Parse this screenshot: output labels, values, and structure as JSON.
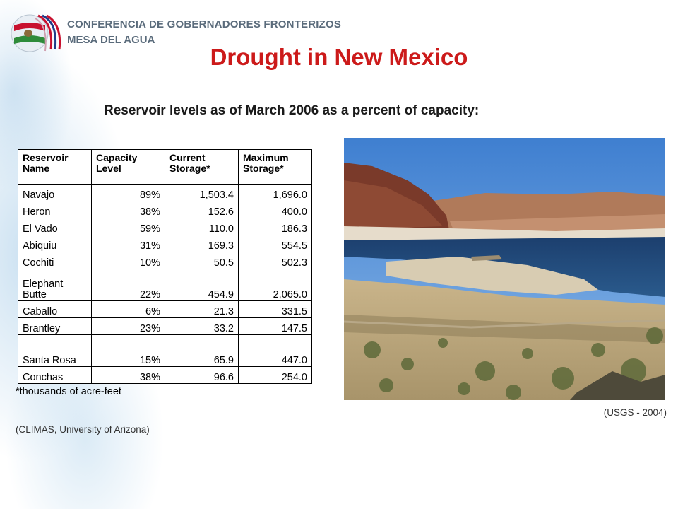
{
  "header": {
    "org_name": "CONFERENCIA DE GOBERNADORES FRONTERIZOS",
    "org_sub": "MESA DEL AGUA",
    "logo_icon": "border-governors-logo-icon"
  },
  "page": {
    "title": "Drought in New Mexico",
    "subtitle": "Reservoir levels as of March 2006 as a percent of capacity:",
    "title_color": "#cc1a1a"
  },
  "table": {
    "headers": [
      "Reservoir Name",
      "Capacity Level",
      "Current Storage*",
      "Maximum Storage*"
    ],
    "rows": [
      {
        "name": "Navajo",
        "capacity": "89%",
        "current": "1,503.4",
        "maximum": "1,696.0"
      },
      {
        "name": "Heron",
        "capacity": "38%",
        "current": "152.6",
        "maximum": "400.0"
      },
      {
        "name": "El Vado",
        "capacity": "59%",
        "current": "110.0",
        "maximum": "186.3"
      },
      {
        "name": "Abiquiu",
        "capacity": "31%",
        "current": "169.3",
        "maximum": "554.5"
      },
      {
        "name": "Cochiti",
        "capacity": "10%",
        "current": "50.5",
        "maximum": "502.3"
      },
      {
        "name": "Elephant Butte",
        "capacity": "22%",
        "current": "454.9",
        "maximum": "2,065.0"
      },
      {
        "name": "Caballo",
        "capacity": "6%",
        "current": "21.3",
        "maximum": "331.5"
      },
      {
        "name": "Brantley",
        "capacity": "23%",
        "current": "33.2",
        "maximum": "147.5"
      },
      {
        "name": "Santa Rosa",
        "capacity": "15%",
        "current": "65.9",
        "maximum": "447.0"
      },
      {
        "name": "Conchas",
        "capacity": "38%",
        "current": "96.6",
        "maximum": "254.0"
      }
    ],
    "footnote": "*thousands of acre-feet"
  },
  "sources": {
    "table_source": "(CLIMAS, University of Arizona)",
    "photo_credit": "(USGS - 2004)"
  },
  "photo": {
    "description_icon": "reservoir-photo"
  }
}
